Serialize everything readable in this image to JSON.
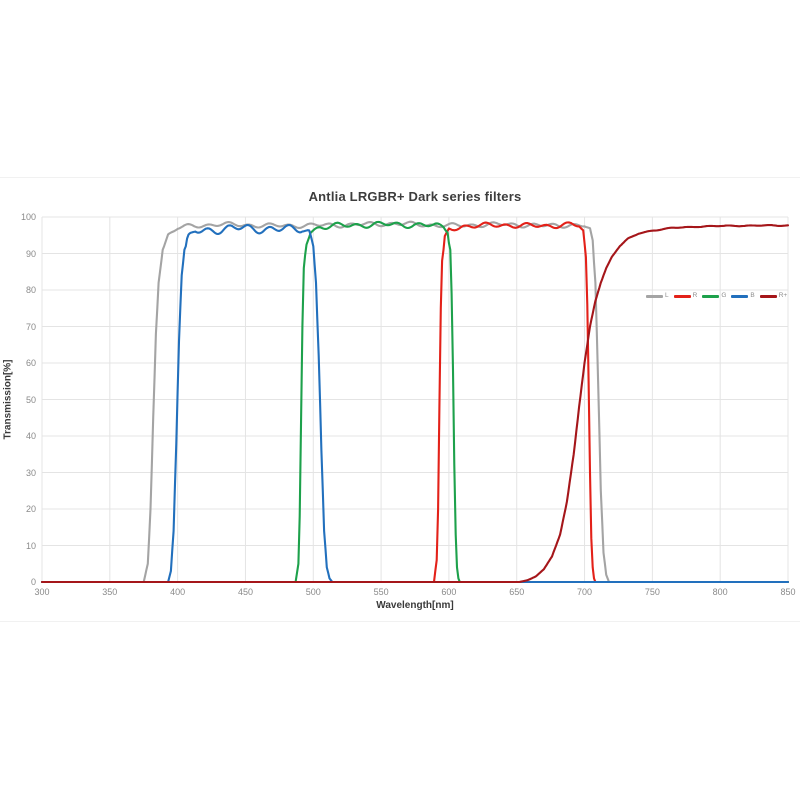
{
  "page": {
    "background": "#ffffff"
  },
  "chart_data": {
    "type": "line",
    "title": "Antlia LRGBR+ Dark series filters",
    "xlabel": "Wavelength[nm]",
    "ylabel": "Transmission[%]",
    "xlim": [
      300,
      850
    ],
    "ylim": [
      0,
      100
    ],
    "x_ticks": [
      300,
      350,
      400,
      450,
      500,
      550,
      600,
      650,
      700,
      750,
      800,
      850
    ],
    "y_ticks": [
      0,
      10,
      20,
      30,
      40,
      50,
      60,
      70,
      80,
      90,
      100
    ],
    "grid": true,
    "grid_color": "#e4e4e4",
    "axis_color": "#9e9e9e",
    "legend_position": "inside-right-middle",
    "series": [
      {
        "name": "L",
        "color": "#a4a4a4",
        "ripple": 0.7,
        "points": [
          [
            300,
            0
          ],
          [
            375,
            0
          ],
          [
            378,
            5
          ],
          [
            380,
            20
          ],
          [
            382,
            45
          ],
          [
            384,
            68
          ],
          [
            386,
            82
          ],
          [
            389,
            91
          ],
          [
            393,
            95
          ],
          [
            400,
            97
          ],
          [
            410,
            97.5
          ],
          [
            430,
            98
          ],
          [
            470,
            97.6
          ],
          [
            520,
            97.8
          ],
          [
            560,
            98.2
          ],
          [
            600,
            97.6
          ],
          [
            640,
            98
          ],
          [
            670,
            97.6
          ],
          [
            690,
            97.8
          ],
          [
            700,
            97.6
          ],
          [
            704,
            96.5
          ],
          [
            706,
            93
          ],
          [
            708,
            82
          ],
          [
            710,
            55
          ],
          [
            712,
            25
          ],
          [
            714,
            8
          ],
          [
            716,
            2
          ],
          [
            718,
            0
          ],
          [
            850,
            0
          ]
        ]
      },
      {
        "name": "R",
        "color": "#e32119",
        "ripple": 0.8,
        "points": [
          [
            300,
            0
          ],
          [
            589,
            0
          ],
          [
            591,
            6
          ],
          [
            592,
            20
          ],
          [
            593,
            48
          ],
          [
            594,
            75
          ],
          [
            595,
            88
          ],
          [
            597,
            94
          ],
          [
            600,
            96.5
          ],
          [
            610,
            97.5
          ],
          [
            640,
            97.8
          ],
          [
            670,
            97.5
          ],
          [
            690,
            98
          ],
          [
            696,
            97.5
          ],
          [
            699,
            96
          ],
          [
            701,
            89
          ],
          [
            702,
            76
          ],
          [
            703,
            55
          ],
          [
            704,
            30
          ],
          [
            705,
            12
          ],
          [
            706,
            4
          ],
          [
            707,
            1
          ],
          [
            708,
            0
          ],
          [
            850,
            0
          ]
        ]
      },
      {
        "name": "G",
        "color": "#1da14b",
        "ripple": 0.9,
        "points": [
          [
            300,
            0
          ],
          [
            487,
            0
          ],
          [
            489,
            5
          ],
          [
            490,
            18
          ],
          [
            491,
            45
          ],
          [
            492,
            70
          ],
          [
            493,
            86
          ],
          [
            495,
            93
          ],
          [
            498,
            96
          ],
          [
            505,
            97.3
          ],
          [
            530,
            97.8
          ],
          [
            560,
            98
          ],
          [
            590,
            97.6
          ],
          [
            596,
            97.4
          ],
          [
            599,
            96.5
          ],
          [
            601,
            91
          ],
          [
            602,
            79
          ],
          [
            603,
            58
          ],
          [
            604,
            32
          ],
          [
            605,
            13
          ],
          [
            606,
            4
          ],
          [
            607,
            1
          ],
          [
            608,
            0
          ],
          [
            850,
            0
          ]
        ]
      },
      {
        "name": "B",
        "color": "#2270bd",
        "ripple": 1.3,
        "points": [
          [
            300,
            0
          ],
          [
            393,
            0
          ],
          [
            395,
            3
          ],
          [
            397,
            14
          ],
          [
            399,
            38
          ],
          [
            401,
            66
          ],
          [
            403,
            84
          ],
          [
            405,
            91
          ],
          [
            408,
            94
          ],
          [
            413,
            96
          ],
          [
            425,
            96.5
          ],
          [
            450,
            97
          ],
          [
            475,
            96.5
          ],
          [
            492,
            97
          ],
          [
            497,
            96
          ],
          [
            500,
            92
          ],
          [
            502,
            82
          ],
          [
            504,
            62
          ],
          [
            506,
            36
          ],
          [
            508,
            14
          ],
          [
            510,
            4
          ],
          [
            512,
            1
          ],
          [
            514,
            0
          ],
          [
            850,
            0
          ]
        ]
      },
      {
        "name": "R+",
        "color": "#a5161a",
        "ripple": 0.15,
        "points": [
          [
            300,
            0
          ],
          [
            652,
            0
          ],
          [
            658,
            0.5
          ],
          [
            664,
            1.5
          ],
          [
            670,
            3.5
          ],
          [
            676,
            7
          ],
          [
            682,
            13
          ],
          [
            687,
            22
          ],
          [
            692,
            35
          ],
          [
            696,
            48
          ],
          [
            700,
            60
          ],
          [
            704,
            70
          ],
          [
            708,
            77
          ],
          [
            712,
            82
          ],
          [
            716,
            86
          ],
          [
            720,
            89
          ],
          [
            726,
            92
          ],
          [
            732,
            94
          ],
          [
            740,
            95.5
          ],
          [
            750,
            96.3
          ],
          [
            765,
            97
          ],
          [
            785,
            97.4
          ],
          [
            810,
            97.6
          ],
          [
            850,
            97.7
          ]
        ]
      }
    ]
  }
}
